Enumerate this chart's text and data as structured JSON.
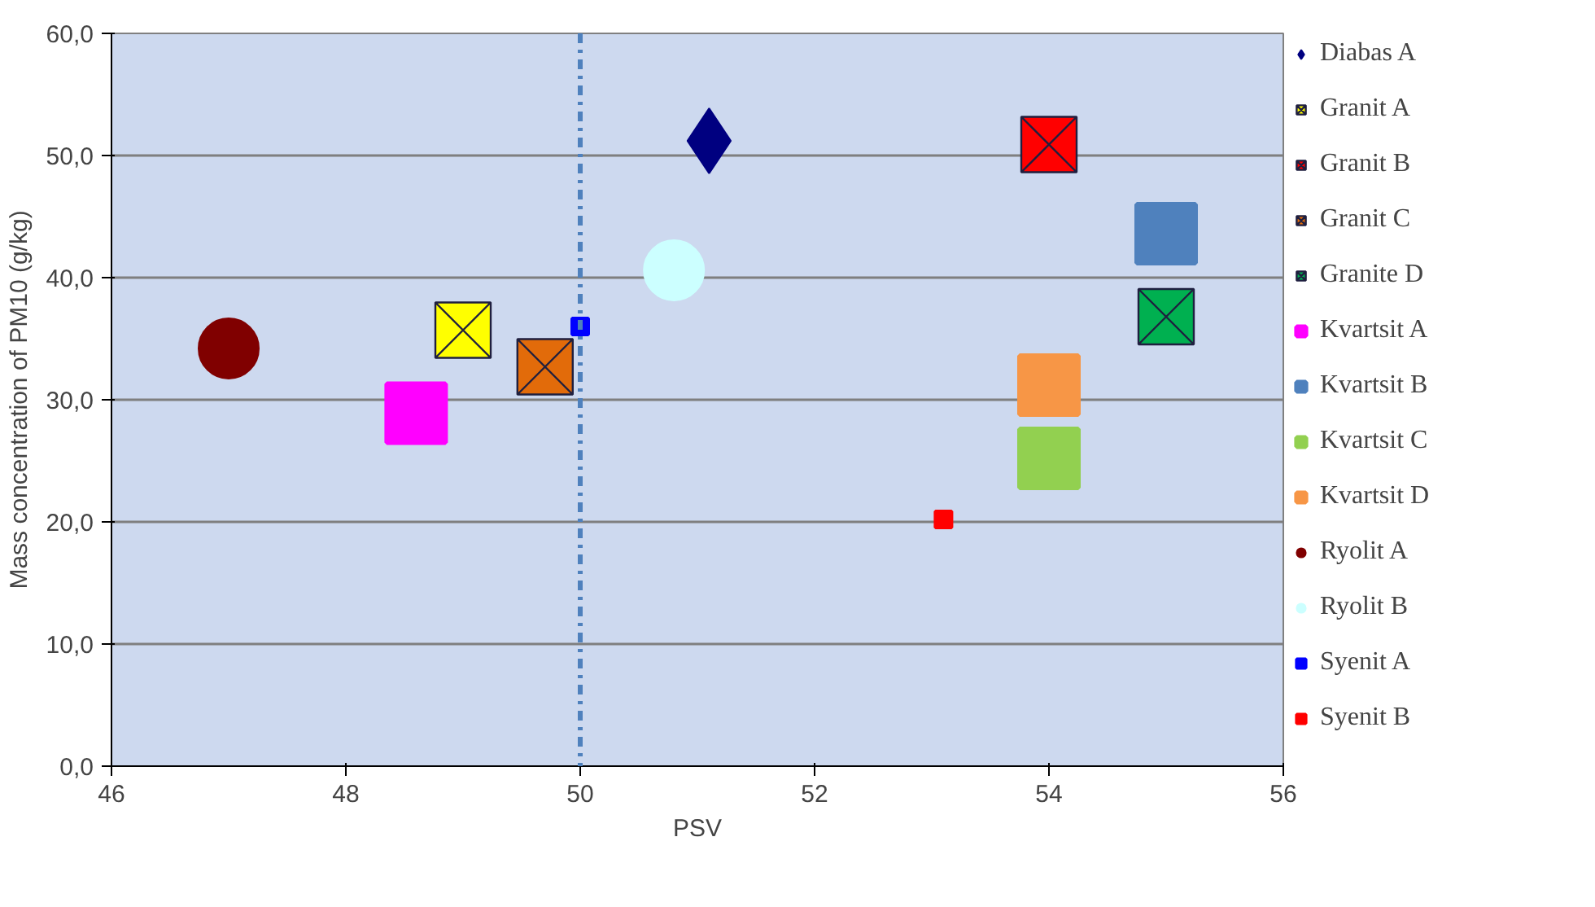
{
  "chart_data": {
    "type": "scatter",
    "xlabel": "PSV",
    "ylabel": "Mass concentration of PM10 (g/kg)",
    "xlim": [
      46,
      56
    ],
    "xticks": [
      46,
      48,
      50,
      52,
      54,
      56
    ],
    "ylim": [
      0,
      60
    ],
    "yticks": [
      {
        "value": 0,
        "label": "0,0"
      },
      {
        "value": 10,
        "label": "10,0"
      },
      {
        "value": 20,
        "label": "20,0"
      },
      {
        "value": 30,
        "label": "30,0"
      },
      {
        "value": 40,
        "label": "40,0"
      },
      {
        "value": 50,
        "label": "50,0"
      },
      {
        "value": 60,
        "label": "60,0"
      }
    ],
    "grid": "y",
    "legend": "right",
    "ref_lines": [
      {
        "axis": "x",
        "value": 50,
        "color": "#4f81bd",
        "line_style": "dashdot"
      }
    ],
    "series": [
      {
        "name": "Diabas A",
        "color": "#000080",
        "marker": "diamond",
        "x": [
          51.1
        ],
        "values": [
          51.2
        ]
      },
      {
        "name": "Granit A",
        "color": "#ffff00",
        "marker": "square_x",
        "x": [
          49.0
        ],
        "values": [
          35.7
        ]
      },
      {
        "name": "Granit B",
        "color": "#ff0000",
        "marker": "square_x",
        "x": [
          54.0
        ],
        "values": [
          50.9
        ]
      },
      {
        "name": "Granit C",
        "color": "#e26b0a",
        "marker": "square_x",
        "x": [
          49.7
        ],
        "values": [
          32.7
        ]
      },
      {
        "name": "Granite D",
        "color": "#00b050",
        "marker": "square_x",
        "x": [
          55.0
        ],
        "values": [
          36.8
        ]
      },
      {
        "name": "Kvartsit A",
        "color": "#ff00ff",
        "marker": "square",
        "x": [
          48.6
        ],
        "values": [
          28.9
        ]
      },
      {
        "name": "Kvartsit B",
        "color": "#4f81bd",
        "marker": "square",
        "x": [
          55.0
        ],
        "values": [
          43.6
        ]
      },
      {
        "name": "Kvartsit C",
        "color": "#92d050",
        "marker": "square",
        "x": [
          54.0
        ],
        "values": [
          25.2
        ]
      },
      {
        "name": "Kvartsit D",
        "color": "#f79646",
        "marker": "square",
        "x": [
          54.0
        ],
        "values": [
          31.2
        ]
      },
      {
        "name": "Ryolit A",
        "color": "#800000",
        "marker": "circle",
        "x": [
          47.0
        ],
        "values": [
          34.2
        ]
      },
      {
        "name": "Ryolit B",
        "color": "#ccffff",
        "marker": "circle",
        "x": [
          50.8
        ],
        "values": [
          40.6
        ]
      },
      {
        "name": "Syenit A",
        "color": "#0000ff",
        "x": [
          50.0
        ],
        "values": [
          36.0
        ]
      },
      {
        "name": "Syenit B",
        "color": "#ff0000",
        "x": [
          53.1
        ],
        "values": [
          20.2
        ]
      }
    ]
  }
}
